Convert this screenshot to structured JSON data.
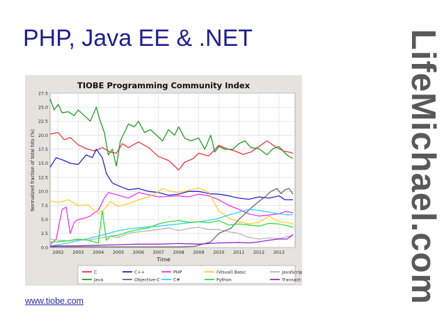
{
  "slide": {
    "title": "PHP, Java EE & .NET",
    "brand": "LifeMichael.com",
    "source_link": "www.tiobe.com"
  },
  "chart_data": {
    "type": "line",
    "title": "TIOBE Programming Community Index",
    "xlabel": "Time",
    "ylabel": "Normalized fraction of total hits (%)",
    "xlim": [
      2001.6,
      2013.8
    ],
    "ylim": [
      0,
      27.5
    ],
    "x_ticks": [
      "2002",
      "2003",
      "2004",
      "2005",
      "2006",
      "2007",
      "2008",
      "2009",
      "2010",
      "2011",
      "2012",
      "2013"
    ],
    "y_ticks": [
      "0.0",
      "2.5",
      "5.0",
      "7.5",
      "10.0",
      "12.5",
      "15.0",
      "17.5",
      "20.0",
      "22.5",
      "25.0",
      "27.5"
    ],
    "grid": true,
    "legend_position": "bottom",
    "series": [
      {
        "name": "C",
        "color": "#e8323c",
        "values": [
          [
            2001.6,
            20.2
          ],
          [
            2002.0,
            20.5
          ],
          [
            2002.3,
            19.2
          ],
          [
            2002.6,
            19.6
          ],
          [
            2003.0,
            18.3
          ],
          [
            2003.4,
            17.6
          ],
          [
            2003.8,
            17.2
          ],
          [
            2004.2,
            17.8
          ],
          [
            2004.6,
            17.0
          ],
          [
            2004.9,
            16.8
          ],
          [
            2005.2,
            18.5
          ],
          [
            2005.5,
            17.8
          ],
          [
            2006.0,
            18.8
          ],
          [
            2006.5,
            17.8
          ],
          [
            2007.0,
            16.2
          ],
          [
            2007.5,
            15.5
          ],
          [
            2007.8,
            14.5
          ],
          [
            2008.0,
            13.8
          ],
          [
            2008.3,
            15.2
          ],
          [
            2008.7,
            15.8
          ],
          [
            2009.0,
            16.8
          ],
          [
            2009.5,
            16.3
          ],
          [
            2010.0,
            18.2
          ],
          [
            2010.4,
            17.6
          ],
          [
            2010.8,
            17.2
          ],
          [
            2011.2,
            16.6
          ],
          [
            2011.6,
            17.0
          ],
          [
            2012.0,
            18.0
          ],
          [
            2012.4,
            19.0
          ],
          [
            2012.8,
            18.0
          ],
          [
            2013.2,
            17.2
          ],
          [
            2013.5,
            17.0
          ],
          [
            2013.7,
            16.8
          ]
        ]
      },
      {
        "name": "C++",
        "color": "#2222cc",
        "values": [
          [
            2001.6,
            14.3
          ],
          [
            2001.9,
            16.0
          ],
          [
            2002.3,
            15.5
          ],
          [
            2002.6,
            15.0
          ],
          [
            2003.0,
            14.8
          ],
          [
            2003.4,
            16.5
          ],
          [
            2003.7,
            16.0
          ],
          [
            2003.9,
            17.5
          ],
          [
            2004.2,
            16.0
          ],
          [
            2004.4,
            13.2
          ],
          [
            2004.7,
            11.5
          ],
          [
            2005.0,
            11.0
          ],
          [
            2005.5,
            10.3
          ],
          [
            2006.0,
            10.5
          ],
          [
            2006.5,
            10.0
          ],
          [
            2007.0,
            9.8
          ],
          [
            2007.5,
            9.3
          ],
          [
            2008.0,
            9.5
          ],
          [
            2008.5,
            10.0
          ],
          [
            2009.0,
            10.0
          ],
          [
            2009.5,
            9.6
          ],
          [
            2010.0,
            9.5
          ],
          [
            2010.5,
            9.2
          ],
          [
            2011.0,
            8.8
          ],
          [
            2011.5,
            8.6
          ],
          [
            2012.0,
            9.0
          ],
          [
            2012.5,
            8.8
          ],
          [
            2013.0,
            9.2
          ],
          [
            2013.3,
            8.5
          ],
          [
            2013.7,
            8.5
          ]
        ]
      },
      {
        "name": "PHP",
        "color": "#ee33ee",
        "values": [
          [
            2001.6,
            0.5
          ],
          [
            2001.9,
            1.5
          ],
          [
            2002.2,
            6.8
          ],
          [
            2002.4,
            7.2
          ],
          [
            2002.6,
            2.5
          ],
          [
            2002.8,
            4.5
          ],
          [
            2003.0,
            5.0
          ],
          [
            2003.3,
            5.2
          ],
          [
            2003.6,
            5.6
          ],
          [
            2003.8,
            6.2
          ],
          [
            2004.0,
            6.6
          ],
          [
            2004.3,
            8.8
          ],
          [
            2004.5,
            9.8
          ],
          [
            2004.8,
            9.5
          ],
          [
            2005.0,
            9.3
          ],
          [
            2005.5,
            8.8
          ],
          [
            2006.0,
            9.8
          ],
          [
            2006.5,
            9.4
          ],
          [
            2007.0,
            9.0
          ],
          [
            2007.5,
            9.1
          ],
          [
            2008.0,
            9.2
          ],
          [
            2008.5,
            9.0
          ],
          [
            2009.0,
            9.5
          ],
          [
            2009.5,
            9.2
          ],
          [
            2010.0,
            8.5
          ],
          [
            2010.5,
            7.5
          ],
          [
            2011.0,
            6.8
          ],
          [
            2011.5,
            6.0
          ],
          [
            2012.0,
            5.6
          ],
          [
            2012.5,
            5.8
          ],
          [
            2013.0,
            6.0
          ],
          [
            2013.3,
            6.4
          ],
          [
            2013.7,
            6.2
          ]
        ]
      },
      {
        "name": "(Visual) Basic",
        "color": "#ffcc33",
        "values": [
          [
            2001.6,
            8.3
          ],
          [
            2002.0,
            8.0
          ],
          [
            2002.5,
            8.5
          ],
          [
            2003.0,
            7.5
          ],
          [
            2003.5,
            7.6
          ],
          [
            2003.8,
            6.5
          ],
          [
            2004.0,
            6.0
          ],
          [
            2004.3,
            6.8
          ],
          [
            2004.6,
            8.2
          ],
          [
            2005.0,
            7.3
          ],
          [
            2005.5,
            7.8
          ],
          [
            2006.0,
            8.5
          ],
          [
            2006.5,
            9.0
          ],
          [
            2006.8,
            9.5
          ],
          [
            2007.2,
            10.5
          ],
          [
            2007.6,
            10.0
          ],
          [
            2008.0,
            9.8
          ],
          [
            2008.5,
            10.2
          ],
          [
            2009.0,
            10.6
          ],
          [
            2009.5,
            9.8
          ],
          [
            2010.0,
            6.5
          ],
          [
            2010.5,
            5.2
          ],
          [
            2011.0,
            4.6
          ],
          [
            2011.5,
            4.2
          ],
          [
            2012.0,
            4.5
          ],
          [
            2012.5,
            5.6
          ],
          [
            2013.0,
            4.6
          ],
          [
            2013.5,
            4.4
          ],
          [
            2013.7,
            4.2
          ]
        ]
      },
      {
        "name": "JavaScript",
        "color": "#b5b5b5",
        "values": [
          [
            2001.6,
            1.5
          ],
          [
            2002.0,
            1.3
          ],
          [
            2002.5,
            1.2
          ],
          [
            2003.0,
            1.4
          ],
          [
            2003.5,
            1.3
          ],
          [
            2004.0,
            1.6
          ],
          [
            2004.5,
            2.0
          ],
          [
            2005.0,
            1.8
          ],
          [
            2005.5,
            2.5
          ],
          [
            2006.0,
            2.8
          ],
          [
            2006.5,
            3.0
          ],
          [
            2007.0,
            3.2
          ],
          [
            2007.5,
            3.5
          ],
          [
            2008.0,
            3.0
          ],
          [
            2008.5,
            3.4
          ],
          [
            2009.0,
            3.6
          ],
          [
            2009.5,
            3.2
          ],
          [
            2010.0,
            3.2
          ],
          [
            2010.5,
            2.8
          ],
          [
            2011.0,
            2.5
          ],
          [
            2011.5,
            1.8
          ],
          [
            2012.0,
            1.5
          ],
          [
            2012.5,
            1.7
          ],
          [
            2013.0,
            1.6
          ],
          [
            2013.5,
            2.0
          ],
          [
            2013.7,
            2.1
          ]
        ]
      },
      {
        "name": "Java",
        "color": "#229922",
        "values": [
          [
            2001.6,
            26.5
          ],
          [
            2001.8,
            24.5
          ],
          [
            2002.0,
            25.5
          ],
          [
            2002.2,
            24.0
          ],
          [
            2002.5,
            24.2
          ],
          [
            2002.8,
            23.5
          ],
          [
            2003.0,
            24.5
          ],
          [
            2003.3,
            23.5
          ],
          [
            2003.6,
            22.5
          ],
          [
            2003.9,
            25.0
          ],
          [
            2004.1,
            22.5
          ],
          [
            2004.3,
            20.5
          ],
          [
            2004.5,
            16.5
          ],
          [
            2004.7,
            17.5
          ],
          [
            2004.9,
            14.5
          ],
          [
            2005.1,
            19.0
          ],
          [
            2005.5,
            22.0
          ],
          [
            2005.8,
            21.5
          ],
          [
            2006.0,
            22.5
          ],
          [
            2006.3,
            20.5
          ],
          [
            2006.6,
            21.0
          ],
          [
            2006.9,
            20.0
          ],
          [
            2007.2,
            19.0
          ],
          [
            2007.5,
            21.0
          ],
          [
            2007.8,
            20.0
          ],
          [
            2008.0,
            21.5
          ],
          [
            2008.3,
            19.5
          ],
          [
            2008.6,
            19.0
          ],
          [
            2009.0,
            19.5
          ],
          [
            2009.3,
            17.5
          ],
          [
            2009.6,
            20.0
          ],
          [
            2009.8,
            17.0
          ],
          [
            2010.0,
            18.0
          ],
          [
            2010.3,
            17.5
          ],
          [
            2010.7,
            17.5
          ],
          [
            2011.0,
            18.5
          ],
          [
            2011.3,
            19.0
          ],
          [
            2011.6,
            17.8
          ],
          [
            2012.0,
            17.6
          ],
          [
            2012.4,
            16.5
          ],
          [
            2012.7,
            17.6
          ],
          [
            2013.0,
            18.0
          ],
          [
            2013.3,
            16.8
          ],
          [
            2013.5,
            16.2
          ],
          [
            2013.7,
            15.9
          ]
        ]
      },
      {
        "name": "Objective-C",
        "color": "#666666",
        "values": [
          [
            2001.6,
            0.1
          ],
          [
            2002.0,
            0.1
          ],
          [
            2003.0,
            0.1
          ],
          [
            2004.0,
            0.1
          ],
          [
            2005.0,
            0.1
          ],
          [
            2006.0,
            0.1
          ],
          [
            2007.0,
            0.1
          ],
          [
            2008.0,
            0.1
          ],
          [
            2008.8,
            0.2
          ],
          [
            2009.2,
            0.6
          ],
          [
            2009.6,
            1.0
          ],
          [
            2010.0,
            2.5
          ],
          [
            2010.3,
            3.0
          ],
          [
            2010.6,
            3.4
          ],
          [
            2011.0,
            5.0
          ],
          [
            2011.3,
            6.0
          ],
          [
            2011.6,
            7.0
          ],
          [
            2012.0,
            8.2
          ],
          [
            2012.3,
            9.0
          ],
          [
            2012.6,
            10.0
          ],
          [
            2012.9,
            10.5
          ],
          [
            2013.1,
            9.6
          ],
          [
            2013.3,
            10.3
          ],
          [
            2013.5,
            10.5
          ],
          [
            2013.7,
            9.5
          ]
        ]
      },
      {
        "name": "C#",
        "color": "#33ccff",
        "values": [
          [
            2001.6,
            0.3
          ],
          [
            2002.0,
            0.5
          ],
          [
            2002.5,
            0.8
          ],
          [
            2003.0,
            1.2
          ],
          [
            2003.5,
            1.6
          ],
          [
            2004.0,
            2.0
          ],
          [
            2004.5,
            2.5
          ],
          [
            2005.0,
            3.0
          ],
          [
            2005.5,
            3.3
          ],
          [
            2006.0,
            3.5
          ],
          [
            2006.5,
            3.7
          ],
          [
            2007.0,
            3.8
          ],
          [
            2007.5,
            4.0
          ],
          [
            2008.0,
            4.2
          ],
          [
            2008.5,
            4.4
          ],
          [
            2009.0,
            4.6
          ],
          [
            2009.5,
            4.8
          ],
          [
            2010.0,
            5.2
          ],
          [
            2010.5,
            5.8
          ],
          [
            2011.0,
            6.3
          ],
          [
            2011.5,
            6.8
          ],
          [
            2012.0,
            6.6
          ],
          [
            2012.5,
            6.3
          ],
          [
            2013.0,
            6.0
          ],
          [
            2013.5,
            5.8
          ],
          [
            2013.7,
            5.9
          ]
        ]
      },
      {
        "name": "Python",
        "color": "#33dd33",
        "values": [
          [
            2001.6,
            1.0
          ],
          [
            2002.0,
            1.0
          ],
          [
            2002.5,
            1.2
          ],
          [
            2003.0,
            1.5
          ],
          [
            2003.5,
            1.3
          ],
          [
            2004.0,
            0.8
          ],
          [
            2004.2,
            6.5
          ],
          [
            2004.4,
            1.3
          ],
          [
            2004.6,
            2.0
          ],
          [
            2005.0,
            2.2
          ],
          [
            2005.5,
            2.8
          ],
          [
            2006.0,
            3.2
          ],
          [
            2006.5,
            3.5
          ],
          [
            2007.0,
            4.2
          ],
          [
            2007.5,
            4.6
          ],
          [
            2008.0,
            4.8
          ],
          [
            2008.5,
            4.5
          ],
          [
            2009.0,
            4.6
          ],
          [
            2009.5,
            4.4
          ],
          [
            2010.0,
            4.8
          ],
          [
            2010.5,
            4.0
          ],
          [
            2011.0,
            4.2
          ],
          [
            2011.5,
            4.0
          ],
          [
            2012.0,
            3.8
          ],
          [
            2012.5,
            4.3
          ],
          [
            2013.0,
            4.2
          ],
          [
            2013.5,
            3.8
          ],
          [
            2013.7,
            3.6
          ]
        ]
      },
      {
        "name": "Transact-SQL",
        "color": "#9922cc",
        "values": [
          [
            2001.6,
            0.2
          ],
          [
            2002.0,
            0.3
          ],
          [
            2003.0,
            0.3
          ],
          [
            2004.0,
            0.4
          ],
          [
            2005.0,
            0.5
          ],
          [
            2006.0,
            0.6
          ],
          [
            2007.0,
            0.6
          ],
          [
            2008.0,
            0.7
          ],
          [
            2009.0,
            0.6
          ],
          [
            2010.0,
            0.8
          ],
          [
            2011.0,
            0.9
          ],
          [
            2011.5,
            0.8
          ],
          [
            2012.0,
            1.0
          ],
          [
            2012.5,
            1.3
          ],
          [
            2013.0,
            1.5
          ],
          [
            2013.4,
            1.5
          ],
          [
            2013.7,
            2.3
          ]
        ]
      }
    ]
  }
}
